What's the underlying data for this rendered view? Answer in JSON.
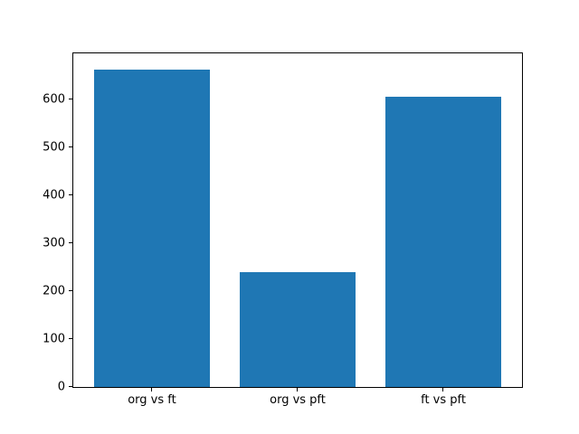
{
  "figure": {
    "background": "#ffffff",
    "frame_color": "#000000",
    "text_color": "#000000"
  },
  "chart_data": {
    "type": "bar",
    "title": "",
    "xlabel": "",
    "ylabel": "",
    "categories": [
      "org vs ft",
      "org vs pft",
      "ft vs pft"
    ],
    "values": [
      663,
      239,
      606
    ],
    "bar_color": "#1f77b4",
    "bar_width": 0.8,
    "yticks": [
      0,
      100,
      200,
      300,
      400,
      500,
      600
    ],
    "ylim": [
      0,
      696
    ],
    "xlim": [
      -0.54,
      2.54
    ],
    "grid": false,
    "legend": null
  }
}
